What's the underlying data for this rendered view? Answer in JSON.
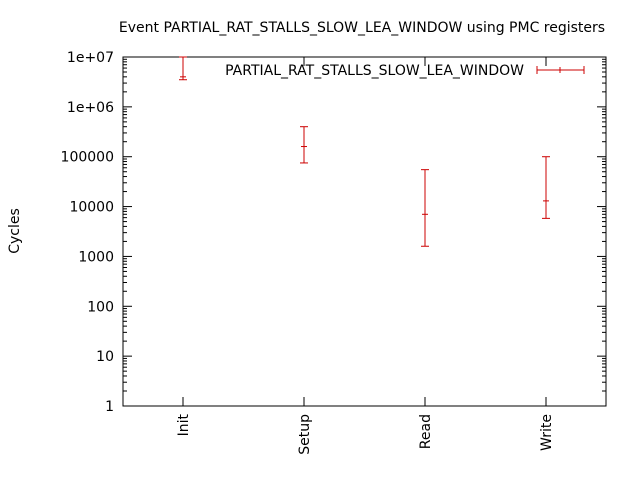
{
  "chart_data": {
    "type": "errorbar",
    "title": "Event PARTIAL_RAT_STALLS_SLOW_LEA_WINDOW using PMC registers",
    "ylabel": "Cycles",
    "xlabel": "",
    "yscale": "log",
    "ylim": [
      1,
      10000000
    ],
    "yticks": [
      {
        "value": 1,
        "label": "1"
      },
      {
        "value": 10,
        "label": "10"
      },
      {
        "value": 100,
        "label": "100"
      },
      {
        "value": 1000,
        "label": "1000"
      },
      {
        "value": 10000,
        "label": "10000"
      },
      {
        "value": 100000,
        "label": "100000"
      },
      {
        "value": 1000000,
        "label": "1e+06"
      },
      {
        "value": 10000000,
        "label": "1e+07"
      }
    ],
    "categories": [
      "Init",
      "Setup",
      "Read",
      "Write"
    ],
    "series": [
      {
        "name": "PARTIAL_RAT_STALLS_SLOW_LEA_WINDOW",
        "color": "#cc0000",
        "points": [
          {
            "category": "Init",
            "y": 4000000,
            "low": 3500000,
            "high": 10000000
          },
          {
            "category": "Setup",
            "y": 160000,
            "low": 75000,
            "high": 400000
          },
          {
            "category": "Read",
            "y": 7000,
            "low": 1600,
            "high": 55000
          },
          {
            "category": "Write",
            "y": 13000,
            "low": 5800,
            "high": 100000
          }
        ]
      }
    ],
    "legend_position": "top-right",
    "grid": false
  }
}
